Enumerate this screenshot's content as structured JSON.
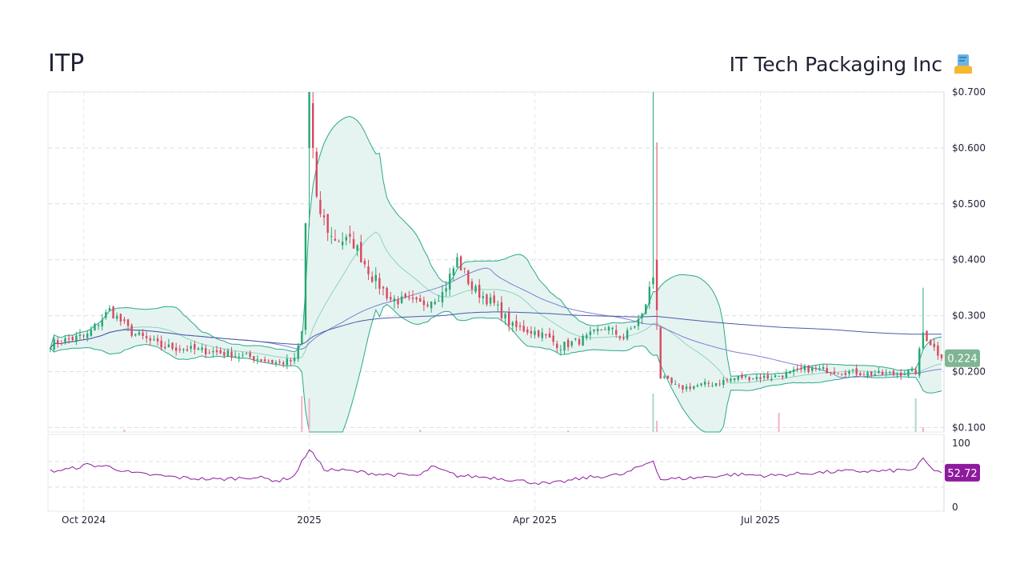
{
  "header": {
    "ticker": "ITP",
    "company_name": "IT Tech Packaging Inc",
    "logo_icon": "paper-roll-icon"
  },
  "chart_data": [
    {
      "type": "candlestick",
      "title": "",
      "y_axis_side": "right",
      "y_tick_labels": [
        "$0.700",
        "$0.600",
        "$0.500",
        "$0.400",
        "$0.300",
        "$0.200",
        "$0.100"
      ],
      "y_ticks": [
        0.7,
        0.6,
        0.5,
        0.4,
        0.3,
        0.2,
        0.1
      ],
      "ylim": [
        0.092,
        0.7
      ],
      "x_tick_labels": [
        "Oct 2024",
        "2025",
        "Apr 2025",
        "Jul 2025"
      ],
      "x_ticks_index": [
        9,
        70,
        131,
        192
      ],
      "n_periods": 242,
      "grid": true,
      "last_price_label": "0.224",
      "last_price": 0.224,
      "colors": {
        "up": "#26a672",
        "down": "#d9485f",
        "band": "#2aa88a",
        "band_fill": "#e6f4f1",
        "ma_fast": "#7e7fd0",
        "ma_slow": "#4a5ba8",
        "price_badge": "#7fb595"
      },
      "key_points": [
        {
          "i": 0,
          "v": 0.25
        },
        {
          "i": 10,
          "v": 0.265
        },
        {
          "i": 16,
          "v": 0.31
        },
        {
          "i": 22,
          "v": 0.27
        },
        {
          "i": 30,
          "v": 0.245
        },
        {
          "i": 45,
          "v": 0.235
        },
        {
          "i": 55,
          "v": 0.225
        },
        {
          "i": 62,
          "v": 0.215
        },
        {
          "i": 66,
          "v": 0.22
        },
        {
          "i": 68,
          "v": 0.27
        },
        {
          "i": 70,
          "v": 0.66
        },
        {
          "i": 72,
          "v": 0.5
        },
        {
          "i": 76,
          "v": 0.44
        },
        {
          "i": 82,
          "v": 0.43
        },
        {
          "i": 87,
          "v": 0.37
        },
        {
          "i": 92,
          "v": 0.33
        },
        {
          "i": 100,
          "v": 0.32
        },
        {
          "i": 106,
          "v": 0.34
        },
        {
          "i": 110,
          "v": 0.4
        },
        {
          "i": 114,
          "v": 0.35
        },
        {
          "i": 120,
          "v": 0.32
        },
        {
          "i": 125,
          "v": 0.28
        },
        {
          "i": 132,
          "v": 0.27
        },
        {
          "i": 138,
          "v": 0.245
        },
        {
          "i": 145,
          "v": 0.26
        },
        {
          "i": 150,
          "v": 0.28
        },
        {
          "i": 155,
          "v": 0.26
        },
        {
          "i": 160,
          "v": 0.3
        },
        {
          "i": 163,
          "v": 0.37
        },
        {
          "i": 165,
          "v": 0.19
        },
        {
          "i": 170,
          "v": 0.17
        },
        {
          "i": 180,
          "v": 0.18
        },
        {
          "i": 186,
          "v": 0.19
        },
        {
          "i": 195,
          "v": 0.19
        },
        {
          "i": 205,
          "v": 0.205
        },
        {
          "i": 215,
          "v": 0.2
        },
        {
          "i": 225,
          "v": 0.195
        },
        {
          "i": 234,
          "v": 0.2
        },
        {
          "i": 236,
          "v": 0.27
        },
        {
          "i": 241,
          "v": 0.224
        }
      ]
    },
    {
      "type": "line",
      "title": "",
      "y_tick_labels": [
        "100",
        "0"
      ],
      "ylim": [
        0,
        100
      ],
      "last_value_label": "52.72",
      "last_value": 52.72,
      "color": "#8e1a9e",
      "key_points": [
        {
          "i": 0,
          "v": 55
        },
        {
          "i": 5,
          "v": 58
        },
        {
          "i": 10,
          "v": 65
        },
        {
          "i": 16,
          "v": 62
        },
        {
          "i": 22,
          "v": 52
        },
        {
          "i": 35,
          "v": 45
        },
        {
          "i": 45,
          "v": 42
        },
        {
          "i": 55,
          "v": 46
        },
        {
          "i": 62,
          "v": 40
        },
        {
          "i": 66,
          "v": 48
        },
        {
          "i": 70,
          "v": 90
        },
        {
          "i": 74,
          "v": 58
        },
        {
          "i": 80,
          "v": 56
        },
        {
          "i": 90,
          "v": 50
        },
        {
          "i": 100,
          "v": 48
        },
        {
          "i": 103,
          "v": 62
        },
        {
          "i": 110,
          "v": 48
        },
        {
          "i": 120,
          "v": 45
        },
        {
          "i": 130,
          "v": 38
        },
        {
          "i": 135,
          "v": 35
        },
        {
          "i": 140,
          "v": 40
        },
        {
          "i": 145,
          "v": 45
        },
        {
          "i": 155,
          "v": 50
        },
        {
          "i": 163,
          "v": 72
        },
        {
          "i": 165,
          "v": 42
        },
        {
          "i": 175,
          "v": 45
        },
        {
          "i": 185,
          "v": 50
        },
        {
          "i": 195,
          "v": 48
        },
        {
          "i": 205,
          "v": 52
        },
        {
          "i": 215,
          "v": 55
        },
        {
          "i": 225,
          "v": 55
        },
        {
          "i": 234,
          "v": 58
        },
        {
          "i": 236,
          "v": 75
        },
        {
          "i": 238,
          "v": 60
        },
        {
          "i": 241,
          "v": 52.72
        }
      ]
    }
  ]
}
